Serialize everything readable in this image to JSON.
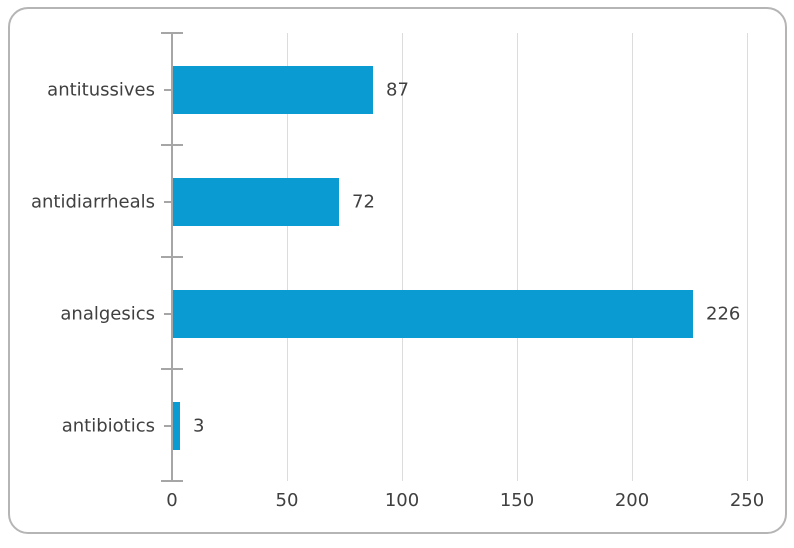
{
  "chart_data": {
    "type": "bar",
    "orientation": "horizontal",
    "title": "",
    "xlabel": "",
    "ylabel": "",
    "categories": [
      "antitussives",
      "antidiarrheals",
      "analgesics",
      "antibiotics"
    ],
    "values": [
      87,
      72,
      226,
      3
    ],
    "data_labels": [
      "87",
      "72",
      "226",
      "3"
    ],
    "xlim": [
      0,
      250
    ],
    "x_ticks": [
      "0",
      "50",
      "100",
      "150",
      "200",
      "250"
    ],
    "x_tick_values": [
      0,
      50,
      100,
      150,
      200,
      250
    ],
    "grid": "vertical-gridlines-on",
    "legend": "none",
    "colors": {
      "bar": "#0a9bd2",
      "text": "#404040",
      "gridline": "#dcdcdc",
      "axis": "#a6a6a6",
      "frame_border": "#b5b5b5",
      "background": "#ffffff"
    }
  }
}
